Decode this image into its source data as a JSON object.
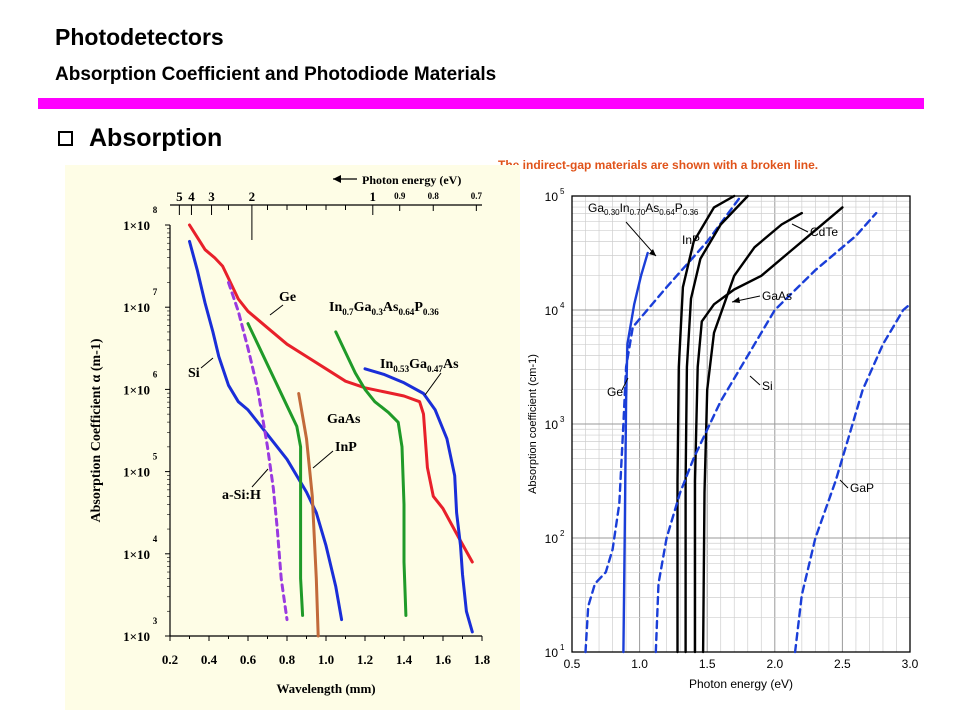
{
  "header": {
    "title": "Photodetectors",
    "subtitle": "Absorption Coefficient and Photodiode Materials",
    "section": "Absorption",
    "note": "The indirect-gap materials are shown with a broken line."
  },
  "colors": {
    "accent_rule": "#ff00ff",
    "note": "#e0531a",
    "panel": "#fefde6"
  },
  "chart_data": [
    {
      "type": "line",
      "title": "",
      "xlabel": "Wavelength (mm)",
      "ylabel": "Absorption Coefficient α (m-1)",
      "top_axis_label": "Photon energy (eV)",
      "y_scale": "log",
      "xlim": [
        0.2,
        1.8
      ],
      "ylim": [
        1000,
        100000000
      ],
      "x_ticks": [
        "0.2",
        "0.4",
        "0.6",
        "0.8",
        "1.0",
        "1.2",
        "1.4",
        "1.6",
        "1.8"
      ],
      "y_ticks": [
        {
          "base": "1×10",
          "exp": "3"
        },
        {
          "base": "1×10",
          "exp": "4"
        },
        {
          "base": "1×10",
          "exp": "5"
        },
        {
          "base": "1×10",
          "exp": "6"
        },
        {
          "base": "1×10",
          "exp": "7"
        },
        {
          "base": "1×10",
          "exp": "8"
        }
      ],
      "top_ticks_large": [
        {
          "label": "5",
          "wl": 0.248
        },
        {
          "label": "4",
          "wl": 0.31
        },
        {
          "label": "3",
          "wl": 0.413
        },
        {
          "label": "2",
          "wl": 0.62
        },
        {
          "label": "1",
          "wl": 1.24
        }
      ],
      "top_ticks_small": [
        {
          "label": "0.9",
          "wl": 1.378
        },
        {
          "label": "0.8",
          "wl": 1.55
        },
        {
          "label": "0.7",
          "wl": 1.771
        }
      ],
      "series": [
        {
          "name": "Ge",
          "color": "#e8202a",
          "dashed": false,
          "points": [
            [
              0.3,
              8.0
            ],
            [
              0.34,
              7.85
            ],
            [
              0.38,
              7.7
            ],
            [
              0.43,
              7.6
            ],
            [
              0.47,
              7.5
            ],
            [
              0.5,
              7.35
            ],
            [
              0.55,
              7.1
            ],
            [
              0.6,
              6.95
            ],
            [
              0.7,
              6.75
            ],
            [
              0.8,
              6.55
            ],
            [
              0.9,
              6.4
            ],
            [
              1.0,
              6.25
            ],
            [
              1.1,
              6.1
            ],
            [
              1.2,
              6.02
            ],
            [
              1.3,
              5.97
            ],
            [
              1.4,
              5.92
            ],
            [
              1.48,
              5.85
            ],
            [
              1.5,
              5.7
            ],
            [
              1.52,
              5.05
            ],
            [
              1.55,
              4.7
            ],
            [
              1.6,
              4.55
            ],
            [
              1.68,
              4.2
            ],
            [
              1.75,
              3.9
            ]
          ]
        },
        {
          "name": "Si",
          "color": "#1a2ed8",
          "dashed": false,
          "points": [
            [
              0.3,
              7.8
            ],
            [
              0.34,
              7.45
            ],
            [
              0.38,
              7.05
            ],
            [
              0.42,
              6.7
            ],
            [
              0.45,
              6.4
            ],
            [
              0.5,
              6.05
            ],
            [
              0.55,
              5.85
            ],
            [
              0.6,
              5.75
            ],
            [
              0.65,
              5.6
            ],
            [
              0.7,
              5.45
            ],
            [
              0.8,
              5.15
            ],
            [
              0.9,
              4.75
            ],
            [
              0.95,
              4.5
            ],
            [
              1.0,
              4.1
            ],
            [
              1.05,
              3.6
            ],
            [
              1.08,
              3.2
            ]
          ]
        },
        {
          "name": "GaAs",
          "color": "#1f9a28",
          "dashed": false,
          "points": [
            [
              0.6,
              6.8
            ],
            [
              0.65,
              6.55
            ],
            [
              0.7,
              6.3
            ],
            [
              0.75,
              6.05
            ],
            [
              0.8,
              5.8
            ],
            [
              0.85,
              5.55
            ],
            [
              0.87,
              5.3
            ],
            [
              0.87,
              4.6
            ],
            [
              0.87,
              3.7
            ],
            [
              0.88,
              3.25
            ]
          ]
        },
        {
          "name": "InP",
          "color": "#c26a3a",
          "dashed": false,
          "points": [
            [
              0.86,
              5.95
            ],
            [
              0.9,
              5.4
            ],
            [
              0.93,
              4.7
            ],
            [
              0.95,
              3.7
            ],
            [
              0.96,
              3.0
            ]
          ]
        },
        {
          "name": "In0.7Ga0.3As0.64P0.36",
          "color": "#1f9a28",
          "dashed": false,
          "points": [
            [
              1.05,
              6.7
            ],
            [
              1.1,
              6.45
            ],
            [
              1.15,
              6.2
            ],
            [
              1.2,
              6.0
            ],
            [
              1.25,
              5.85
            ],
            [
              1.32,
              5.72
            ],
            [
              1.37,
              5.6
            ],
            [
              1.39,
              5.3
            ],
            [
              1.4,
              4.6
            ],
            [
              1.4,
              3.9
            ],
            [
              1.41,
              3.25
            ]
          ]
        },
        {
          "name": "In0.53Ga0.47As",
          "color": "#1a2ed8",
          "dashed": false,
          "points": [
            [
              1.2,
              6.25
            ],
            [
              1.3,
              6.18
            ],
            [
              1.4,
              6.08
            ],
            [
              1.5,
              5.95
            ],
            [
              1.56,
              5.75
            ],
            [
              1.62,
              5.4
            ],
            [
              1.66,
              4.95
            ],
            [
              1.67,
              4.5
            ],
            [
              1.69,
              4.1
            ],
            [
              1.7,
              3.75
            ],
            [
              1.72,
              3.3
            ],
            [
              1.75,
              3.05
            ]
          ]
        },
        {
          "name": "a-Si:H",
          "color": "#9a3ae0",
          "dashed": true,
          "points": [
            [
              0.5,
              7.3
            ],
            [
              0.55,
              6.95
            ],
            [
              0.6,
              6.5
            ],
            [
              0.65,
              6.0
            ],
            [
              0.7,
              5.3
            ],
            [
              0.73,
              4.8
            ],
            [
              0.75,
              4.3
            ],
            [
              0.77,
              3.7
            ],
            [
              0.8,
              3.2
            ]
          ]
        }
      ],
      "labels": {
        "ge": "Ge",
        "si": "Si",
        "gaas": "GaAs",
        "inp": "InP",
        "asih": "a-Si:H",
        "ingaasp": {
          "a": "In",
          "a_sub": "0.7",
          "b": "Ga",
          "b_sub": "0.3",
          "c": "As",
          "c_sub": "0.64",
          "d": "P",
          "d_sub": "0.36"
        },
        "ingaas": {
          "a": "In",
          "a_sub": "0.53",
          "b": "Ga",
          "b_sub": "0.47",
          "c": "As"
        }
      }
    },
    {
      "type": "line",
      "title": "",
      "xlabel": "Photon energy (eV)",
      "ylabel": "Absorption coefficient (cm-1)",
      "y_scale": "log",
      "xlim": [
        0.5,
        3.0
      ],
      "ylim": [
        10,
        100000
      ],
      "x_ticks": [
        "0.5",
        "1.0",
        "1.5",
        "2.0",
        "2.5",
        "3.0"
      ],
      "y_ticks": [
        {
          "base": "10",
          "exp": "1"
        },
        {
          "base": "10",
          "exp": "2"
        },
        {
          "base": "10",
          "exp": "3"
        },
        {
          "base": "10",
          "exp": "4"
        },
        {
          "base": "10",
          "exp": "5"
        }
      ],
      "series": [
        {
          "name": "Ge",
          "color": "#1a3ed8",
          "dashed": false,
          "points": [
            [
              0.88,
              1.0
            ],
            [
              0.89,
              2.0
            ],
            [
              0.9,
              3.2
            ],
            [
              0.91,
              3.7
            ],
            [
              0.96,
              4.05
            ],
            [
              1.01,
              4.3
            ],
            [
              1.06,
              4.5
            ]
          ]
        },
        {
          "name": "Ge-indirect",
          "color": "#1a3ed8",
          "dashed": true,
          "points": [
            [
              0.6,
              1.0
            ],
            [
              0.62,
              1.4
            ],
            [
              0.67,
              1.6
            ],
            [
              0.75,
              1.7
            ],
            [
              0.8,
              1.9
            ],
            [
              0.85,
              2.3
            ],
            [
              0.88,
              3.0
            ],
            [
              0.9,
              3.5
            ],
            [
              0.95,
              3.85
            ],
            [
              1.2,
              4.2
            ],
            [
              1.5,
              4.6
            ],
            [
              1.75,
              5.0
            ]
          ]
        },
        {
          "name": "In0.70Ga0.30As0.64P0.36",
          "color": "#000000",
          "dashed": false,
          "points": [
            [
              1.28,
              1.0
            ],
            [
              1.28,
              2.5
            ],
            [
              1.29,
              3.5
            ],
            [
              1.32,
              4.2
            ],
            [
              1.4,
              4.6
            ],
            [
              1.55,
              4.9
            ],
            [
              1.7,
              5.0
            ]
          ]
        },
        {
          "name": "InP",
          "color": "#000000",
          "dashed": false,
          "points": [
            [
              1.34,
              1.0
            ],
            [
              1.34,
              2.5
            ],
            [
              1.35,
              3.5
            ],
            [
              1.38,
              4.1
            ],
            [
              1.45,
              4.45
            ],
            [
              1.6,
              4.75
            ],
            [
              1.8,
              5.0
            ]
          ]
        },
        {
          "name": "GaAs",
          "color": "#000000",
          "dashed": false,
          "points": [
            [
              1.41,
              1.0
            ],
            [
              1.41,
              2.5
            ],
            [
              1.43,
              3.5
            ],
            [
              1.46,
              3.9
            ],
            [
              1.55,
              4.05
            ],
            [
              1.7,
              4.18
            ],
            [
              1.9,
              4.3
            ],
            [
              2.1,
              4.5
            ],
            [
              2.3,
              4.7
            ],
            [
              2.5,
              4.9
            ]
          ]
        },
        {
          "name": "CdTe",
          "color": "#000000",
          "dashed": false,
          "points": [
            [
              1.47,
              1.0
            ],
            [
              1.48,
              2.4
            ],
            [
              1.5,
              3.3
            ],
            [
              1.55,
              3.8
            ],
            [
              1.7,
              4.3
            ],
            [
              1.85,
              4.55
            ],
            [
              2.05,
              4.75
            ],
            [
              2.2,
              4.85
            ]
          ]
        },
        {
          "name": "Si",
          "color": "#1a3ed8",
          "dashed": true,
          "points": [
            [
              1.12,
              1.0
            ],
            [
              1.14,
              1.6
            ],
            [
              1.2,
              2.0
            ],
            [
              1.3,
              2.4
            ],
            [
              1.4,
              2.7
            ],
            [
              1.6,
              3.2
            ],
            [
              1.8,
              3.6
            ],
            [
              2.0,
              4.0
            ],
            [
              2.3,
              4.35
            ],
            [
              2.6,
              4.65
            ],
            [
              2.75,
              4.85
            ]
          ]
        },
        {
          "name": "GaP",
          "color": "#1a3ed8",
          "dashed": true,
          "points": [
            [
              2.15,
              1.0
            ],
            [
              2.2,
              1.5
            ],
            [
              2.3,
              2.0
            ],
            [
              2.45,
              2.5
            ],
            [
              2.55,
              2.9
            ],
            [
              2.65,
              3.3
            ],
            [
              2.8,
              3.7
            ],
            [
              2.95,
              4.0
            ],
            [
              3.0,
              4.05
            ]
          ]
        }
      ],
      "labels": {
        "ingaasp": {
          "a": "Ga",
          "a_sub": "0.30",
          "b": "In",
          "b_sub": "0.70",
          "c": "As",
          "c_sub": "0.64",
          "d": "P",
          "d_sub": "0.36"
        },
        "inp": "InP",
        "cdte": "CdTe",
        "gaas": "GaAs",
        "ge": "Ge",
        "si": "Si",
        "gap": "GaP"
      }
    }
  ]
}
